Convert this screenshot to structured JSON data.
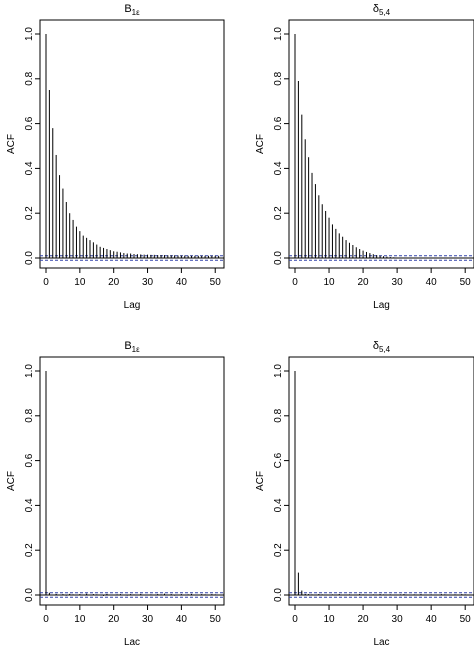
{
  "chart_data": [
    {
      "type": "bar",
      "title": "B",
      "title_sub": "1ε",
      "xlabel": "Lag",
      "ylabel": "ACF",
      "xlim": [
        0,
        52
      ],
      "ylim": [
        0,
        1.0
      ],
      "xticks": [
        "0",
        "10",
        "20",
        "30",
        "40",
        "50"
      ],
      "yticks": [
        "0.0",
        "0.2",
        "0.4",
        "0.6",
        "0.8",
        "1.0"
      ],
      "conf_band": 0.01,
      "lags": [
        0,
        1,
        2,
        3,
        4,
        5,
        6,
        7,
        8,
        9,
        10,
        11,
        12,
        13,
        14,
        15,
        16,
        17,
        18,
        19,
        20,
        21,
        22,
        23,
        24,
        25,
        26,
        27,
        28,
        29,
        30,
        31,
        32,
        33,
        34,
        35,
        36,
        37,
        38,
        39,
        40,
        41,
        42,
        43,
        44,
        45,
        46,
        47,
        48,
        49,
        50,
        51
      ],
      "values": [
        1.0,
        0.75,
        0.58,
        0.46,
        0.37,
        0.31,
        0.25,
        0.2,
        0.17,
        0.14,
        0.12,
        0.1,
        0.09,
        0.08,
        0.07,
        0.06,
        0.05,
        0.045,
        0.04,
        0.035,
        0.03,
        0.028,
        0.025,
        0.022,
        0.02,
        0.02,
        0.018,
        0.017,
        0.016,
        0.015,
        0.015,
        0.014,
        0.014,
        0.013,
        0.013,
        0.013,
        0.012,
        0.012,
        0.012,
        0.011,
        0.011,
        0.011,
        0.01,
        0.01,
        0.01,
        0.01,
        0.01,
        0.01,
        0.01,
        0.01,
        0.01,
        0.01
      ],
      "grid": false
    },
    {
      "type": "bar",
      "title": "δ",
      "title_sub": "5,4",
      "xlabel": "Lag",
      "ylabel": "ACF",
      "xlim": [
        0,
        52
      ],
      "ylim": [
        0,
        1.0
      ],
      "xticks": [
        "0",
        "10",
        "20",
        "30",
        "40",
        "50"
      ],
      "yticks": [
        "0.0",
        "0.2",
        "0.4",
        "0.6",
        "0.8",
        "1.0"
      ],
      "conf_band": 0.01,
      "lags": [
        0,
        1,
        2,
        3,
        4,
        5,
        6,
        7,
        8,
        9,
        10,
        11,
        12,
        13,
        14,
        15,
        16,
        17,
        18,
        19,
        20,
        21,
        22,
        23,
        24,
        25,
        26,
        27,
        28,
        29,
        30,
        31,
        32,
        33,
        34,
        35,
        36,
        37,
        38,
        39,
        40,
        41,
        42,
        43,
        44,
        45,
        46,
        47,
        48,
        49,
        50,
        51
      ],
      "values": [
        1.0,
        0.79,
        0.64,
        0.53,
        0.45,
        0.38,
        0.33,
        0.28,
        0.24,
        0.21,
        0.18,
        0.15,
        0.13,
        0.11,
        0.095,
        0.08,
        0.068,
        0.058,
        0.048,
        0.04,
        0.033,
        0.027,
        0.022,
        0.017,
        0.013,
        0.01,
        0.008,
        0.006,
        0.004,
        0.003,
        0.002,
        0.001,
        0.0,
        0.0,
        0.0,
        0.0,
        0.0,
        0.0,
        0.0,
        0.0,
        0.0,
        0.0,
        0.0,
        0.0,
        0.0,
        0.0,
        0.0,
        0.0,
        0.0,
        0.0,
        0.0,
        0.0
      ],
      "grid": false
    },
    {
      "type": "bar",
      "title": "B",
      "title_sub": "1ε",
      "xlabel": "Lac",
      "ylabel": "ACF",
      "xlim": [
        0,
        52
      ],
      "ylim": [
        0,
        1.0
      ],
      "xticks": [
        "0",
        "10",
        "20",
        "30",
        "40",
        "50"
      ],
      "yticks": [
        "0.0",
        "0.2",
        "0.4",
        "0.6",
        "0.8",
        "1.0"
      ],
      "conf_band": 0.01,
      "lags": [
        0,
        1,
        2,
        3,
        4,
        5,
        6,
        7,
        8,
        9,
        10,
        11,
        12,
        13,
        14,
        15,
        16,
        17,
        18,
        19,
        20,
        21,
        22,
        23,
        24,
        25,
        26,
        27,
        28,
        29,
        30,
        31,
        32,
        33,
        34,
        35,
        36,
        37,
        38,
        39,
        40,
        41,
        42,
        43,
        44,
        45,
        46,
        47,
        48,
        49,
        50,
        51
      ],
      "values": [
        1.0,
        0.01,
        0.0,
        0.005,
        0.0,
        0.004,
        -0.003,
        0.005,
        0.003,
        0.0,
        0.004,
        -0.002,
        0.006,
        0.0,
        0.004,
        0.003,
        0.0,
        -0.004,
        0.005,
        0.002,
        0.0,
        0.003,
        0.004,
        0.0,
        -0.003,
        0.004,
        0.003,
        0.0,
        0.005,
        0.002,
        -0.002,
        0.003,
        0.0,
        0.004,
        0.003,
        0.006,
        0.0,
        0.004,
        -0.003,
        0.002,
        0.004,
        0.0,
        0.003,
        0.005,
        0.0,
        -0.002,
        0.004,
        0.003,
        0.0,
        0.004,
        0.003,
        0.0
      ],
      "grid": false
    },
    {
      "type": "bar",
      "title": "δ",
      "title_sub": "5,4",
      "xlabel": "Lac",
      "ylabel": "ACF",
      "xlim": [
        0,
        52
      ],
      "ylim": [
        0,
        1.0
      ],
      "xticks": [
        "0",
        "10",
        "20",
        "30",
        "40",
        "50"
      ],
      "yticks": [
        "0.0",
        "0.2",
        "0.4",
        "C.6",
        "0.8",
        "1.0"
      ],
      "conf_band": 0.01,
      "lags": [
        0,
        1,
        2,
        3,
        4,
        5,
        6,
        7,
        8,
        9,
        10,
        11,
        12,
        13,
        14,
        15,
        16,
        17,
        18,
        19,
        20,
        21,
        22,
        23,
        24,
        25,
        26,
        27,
        28,
        29,
        30,
        31,
        32,
        33,
        34,
        35,
        36,
        37,
        38,
        39,
        40,
        41,
        42,
        43,
        44,
        45,
        46,
        47,
        48,
        49,
        50,
        51
      ],
      "values": [
        1.0,
        0.1,
        0.02,
        0.005,
        0.004,
        0.003,
        0.0,
        0.004,
        0.003,
        0.0,
        0.002,
        0.003,
        0.0,
        0.004,
        0.002,
        0.0,
        0.003,
        0.002,
        0.0,
        0.004,
        0.003,
        0.0,
        0.002,
        0.003,
        0.0,
        0.004,
        0.003,
        0.0,
        0.003,
        0.002,
        0.0,
        0.003,
        0.004,
        0.0,
        0.002,
        0.003,
        0.0,
        0.004,
        0.002,
        0.0,
        0.003,
        0.002,
        0.0,
        0.004,
        0.003,
        0.0,
        0.002,
        0.003,
        0.0,
        0.004,
        0.003,
        0.0
      ],
      "grid": false
    }
  ]
}
